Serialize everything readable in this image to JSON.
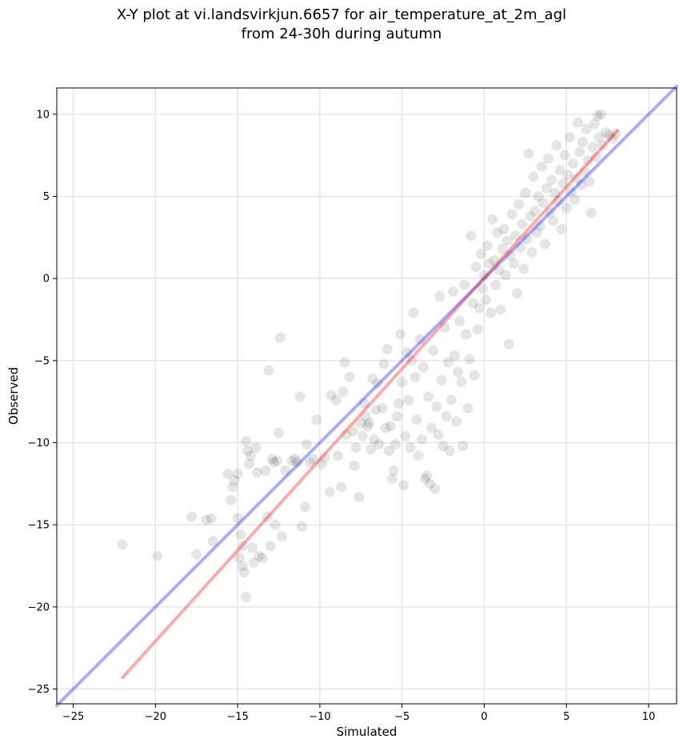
{
  "chart_data": {
    "type": "scatter",
    "title": "X-Y plot at vi.landsvirkjun.6657 for air_temperature_at_2m_agl",
    "subtitle": "from 24-30h during autumn",
    "xlabel": "Simulated",
    "ylabel": "Observed",
    "xlim": [
      -26,
      11.7
    ],
    "ylim": [
      -25.9,
      11.6
    ],
    "xticks": [
      -25,
      -20,
      -15,
      -10,
      -5,
      0,
      5,
      10
    ],
    "yticks": [
      -25,
      -20,
      -15,
      -10,
      -5,
      0,
      5,
      10
    ],
    "xtick_labels": [
      "−25",
      "−20",
      "−15",
      "−10",
      "−5",
      "0",
      "5",
      "10"
    ],
    "ytick_labels": [
      "−25",
      "−20",
      "−15",
      "−10",
      "−5",
      "0",
      "5",
      "10"
    ],
    "grid": true,
    "point_color": "#000000",
    "point_alpha": 0.1,
    "lines": [
      {
        "role": "identity",
        "color": "#0000ff",
        "alpha": 0.33,
        "x": [
          -26,
          11.7
        ],
        "y": [
          -26,
          11.7
        ]
      },
      {
        "role": "fit",
        "color": "#ff0000",
        "alpha": 0.33,
        "x": [
          -22,
          8.1
        ],
        "y": [
          -24.3,
          9.0
        ]
      }
    ],
    "points": [
      [
        -22.0,
        -16.2
      ],
      [
        -19.9,
        -16.9
      ],
      [
        -17.8,
        -14.5
      ],
      [
        -17.5,
        -16.8
      ],
      [
        -16.9,
        -14.7
      ],
      [
        -16.6,
        -14.6
      ],
      [
        -16.5,
        -16.0
      ],
      [
        -15.6,
        -11.9
      ],
      [
        -15.4,
        -13.5
      ],
      [
        -15.3,
        -12.7
      ],
      [
        -15.2,
        -12.3
      ],
      [
        -15.0,
        -11.9
      ],
      [
        -15.0,
        -14.6
      ],
      [
        -14.9,
        -17.0
      ],
      [
        -14.8,
        -15.6
      ],
      [
        -14.7,
        -16.3
      ],
      [
        -14.7,
        -17.5
      ],
      [
        -14.6,
        -17.9
      ],
      [
        -14.5,
        -19.4
      ],
      [
        -14.5,
        -9.9
      ],
      [
        -14.4,
        -10.5
      ],
      [
        -14.3,
        -11.3
      ],
      [
        -14.2,
        -10.8
      ],
      [
        -14.1,
        -16.4
      ],
      [
        -14.0,
        -17.3
      ],
      [
        -13.9,
        -10.3
      ],
      [
        -13.8,
        -11.8
      ],
      [
        -13.7,
        -16.9
      ],
      [
        -13.5,
        -17.0
      ],
      [
        -13.3,
        -11.7
      ],
      [
        -13.2,
        -14.5
      ],
      [
        -13.1,
        -5.6
      ],
      [
        -13.0,
        -16.3
      ],
      [
        -12.9,
        -11.0
      ],
      [
        -12.8,
        -11.2
      ],
      [
        -12.7,
        -15.0
      ],
      [
        -12.6,
        -11.1
      ],
      [
        -12.5,
        -9.4
      ],
      [
        -12.4,
        -3.6
      ],
      [
        -12.3,
        -15.7
      ],
      [
        -12.1,
        -11.7
      ],
      [
        -11.7,
        -11.1
      ],
      [
        -11.5,
        -11.0
      ],
      [
        -11.4,
        -11.2
      ],
      [
        -11.2,
        -7.2
      ],
      [
        -11.1,
        -15.1
      ],
      [
        -10.9,
        -13.9
      ],
      [
        -10.8,
        -10.1
      ],
      [
        -10.6,
        -11.2
      ],
      [
        -10.4,
        -11.0
      ],
      [
        -10.2,
        -8.6
      ],
      [
        -9.9,
        -11.3
      ],
      [
        -9.7,
        -10.9
      ],
      [
        -9.4,
        -13.0
      ],
      [
        -9.3,
        -7.1
      ],
      [
        -9.0,
        -7.4
      ],
      [
        -8.9,
        -10.8
      ],
      [
        -8.7,
        -12.7
      ],
      [
        -8.6,
        -6.9
      ],
      [
        -8.5,
        -5.1
      ],
      [
        -8.4,
        -9.5
      ],
      [
        -8.2,
        -6.0
      ],
      [
        -8.0,
        -9.3
      ],
      [
        -7.9,
        -11.4
      ],
      [
        -7.8,
        -10.3
      ],
      [
        -7.6,
        -13.3
      ],
      [
        -7.5,
        -8.8
      ],
      [
        -7.4,
        -9.6
      ],
      [
        -7.3,
        -7.6
      ],
      [
        -7.2,
        -8.4
      ],
      [
        -7.1,
        -9.0
      ],
      [
        -7.0,
        -8.8
      ],
      [
        -6.9,
        -10.4
      ],
      [
        -6.8,
        -6.1
      ],
      [
        -6.7,
        -9.8
      ],
      [
        -6.6,
        -8.0
      ],
      [
        -6.5,
        -6.4
      ],
      [
        -6.4,
        -10.1
      ],
      [
        -6.2,
        -7.9
      ],
      [
        -6.1,
        -5.2
      ],
      [
        -6.0,
        -9.1
      ],
      [
        -5.9,
        -4.3
      ],
      [
        -5.8,
        -10.5
      ],
      [
        -5.7,
        -9.0
      ],
      [
        -5.6,
        -12.2
      ],
      [
        -5.5,
        -11.7
      ],
      [
        -5.4,
        -10.1
      ],
      [
        -5.3,
        -8.4
      ],
      [
        -5.2,
        -7.6
      ],
      [
        -5.1,
        -3.4
      ],
      [
        -5.0,
        -6.3
      ],
      [
        -4.9,
        -12.6
      ],
      [
        -4.8,
        -9.6
      ],
      [
        -4.7,
        -4.5
      ],
      [
        -4.6,
        -7.4
      ],
      [
        -4.5,
        -10.3
      ],
      [
        -4.4,
        -5.0
      ],
      [
        -4.3,
        -2.1
      ],
      [
        -4.2,
        -6.0
      ],
      [
        -4.1,
        -8.6
      ],
      [
        -4.0,
        -10.8
      ],
      [
        -3.9,
        -3.7
      ],
      [
        -3.8,
        -9.8
      ],
      [
        -3.7,
        -5.4
      ],
      [
        -3.6,
        -12.2
      ],
      [
        -3.5,
        -12.0
      ],
      [
        -3.4,
        -7.2
      ],
      [
        -3.3,
        -12.5
      ],
      [
        -3.2,
        -9.1
      ],
      [
        -3.1,
        -4.4
      ],
      [
        -3.0,
        -12.8
      ],
      [
        -2.9,
        -7.8
      ],
      [
        -2.8,
        -9.5
      ],
      [
        -2.7,
        -1.1
      ],
      [
        -2.6,
        -6.2
      ],
      [
        -2.5,
        -10.2
      ],
      [
        -2.4,
        -3.0
      ],
      [
        -2.3,
        -8.4
      ],
      [
        -2.2,
        -5.1
      ],
      [
        -2.1,
        -10.5
      ],
      [
        -2.0,
        -7.4
      ],
      [
        -1.9,
        -0.8
      ],
      [
        -1.8,
        -4.7
      ],
      [
        -1.7,
        -8.7
      ],
      [
        -1.6,
        -5.7
      ],
      [
        -1.5,
        -2.6
      ],
      [
        -1.4,
        -6.3
      ],
      [
        -1.3,
        -10.2
      ],
      [
        -1.2,
        -0.4
      ],
      [
        -1.1,
        -3.4
      ],
      [
        -1.0,
        -7.9
      ],
      [
        -0.9,
        -4.9
      ],
      [
        -0.8,
        2.6
      ],
      [
        -0.7,
        -1.5
      ],
      [
        -0.6,
        -5.9
      ],
      [
        -0.5,
        0.7
      ],
      [
        -0.4,
        -3.1
      ],
      [
        -0.3,
        -1.8
      ],
      [
        -0.2,
        1.5
      ],
      [
        -0.1,
        -0.6
      ],
      [
        0.0,
        0.2
      ],
      [
        0.1,
        -1.3
      ],
      [
        0.2,
        2.0
      ],
      [
        0.3,
        0.9
      ],
      [
        0.4,
        -2.1
      ],
      [
        0.5,
        3.6
      ],
      [
        0.6,
        1.1
      ],
      [
        0.7,
        -0.4
      ],
      [
        0.8,
        2.8
      ],
      [
        0.9,
        0.5
      ],
      [
        1.0,
        -1.9
      ],
      [
        1.1,
        1.8
      ],
      [
        1.2,
        3.0
      ],
      [
        1.3,
        0.2
      ],
      [
        1.4,
        2.3
      ],
      [
        1.5,
        -4.0
      ],
      [
        1.6,
        1.4
      ],
      [
        1.7,
        3.9
      ],
      [
        1.8,
        0.9
      ],
      [
        1.9,
        2.6
      ],
      [
        2.0,
        -0.9
      ],
      [
        2.1,
        4.5
      ],
      [
        2.2,
        1.9
      ],
      [
        2.3,
        3.3
      ],
      [
        2.4,
        0.6
      ],
      [
        2.5,
        5.2
      ],
      [
        2.6,
        2.4
      ],
      [
        2.7,
        7.6
      ],
      [
        2.8,
        3.8
      ],
      [
        2.9,
        1.6
      ],
      [
        3.0,
        6.2
      ],
      [
        3.1,
        4.1
      ],
      [
        3.2,
        2.8
      ],
      [
        3.3,
        5.0
      ],
      [
        3.4,
        3.2
      ],
      [
        3.5,
        6.8
      ],
      [
        3.6,
        4.6
      ],
      [
        3.7,
        2.1
      ],
      [
        3.8,
        5.5
      ],
      [
        3.9,
        7.3
      ],
      [
        4.0,
        4.0
      ],
      [
        4.1,
        6.0
      ],
      [
        4.2,
        3.5
      ],
      [
        4.3,
        5.2
      ],
      [
        4.4,
        8.1
      ],
      [
        4.5,
        4.7
      ],
      [
        4.6,
        6.6
      ],
      [
        4.7,
        3.0
      ],
      [
        4.8,
        5.8
      ],
      [
        4.9,
        7.5
      ],
      [
        5.0,
        4.3
      ],
      [
        5.1,
        6.3
      ],
      [
        5.2,
        8.6
      ],
      [
        5.3,
        5.3
      ],
      [
        5.4,
        7.0
      ],
      [
        5.5,
        4.8
      ],
      [
        5.6,
        6.1
      ],
      [
        5.7,
        9.5
      ],
      [
        5.8,
        7.7
      ],
      [
        5.9,
        5.7
      ],
      [
        6.0,
        8.3
      ],
      [
        6.1,
        6.5
      ],
      [
        6.2,
        9.1
      ],
      [
        6.3,
        7.2
      ],
      [
        6.4,
        5.9
      ],
      [
        6.5,
        4.0
      ],
      [
        6.6,
        8.0
      ],
      [
        6.7,
        9.4
      ],
      [
        6.8,
        7.4
      ],
      [
        6.9,
        9.9
      ],
      [
        7.0,
        8.6
      ],
      [
        7.1,
        10.0
      ],
      [
        7.2,
        8.1
      ],
      [
        7.4,
        8.9
      ],
      [
        7.6,
        8.7
      ],
      [
        7.8,
        8.5
      ],
      [
        8.0,
        8.8
      ]
    ]
  }
}
